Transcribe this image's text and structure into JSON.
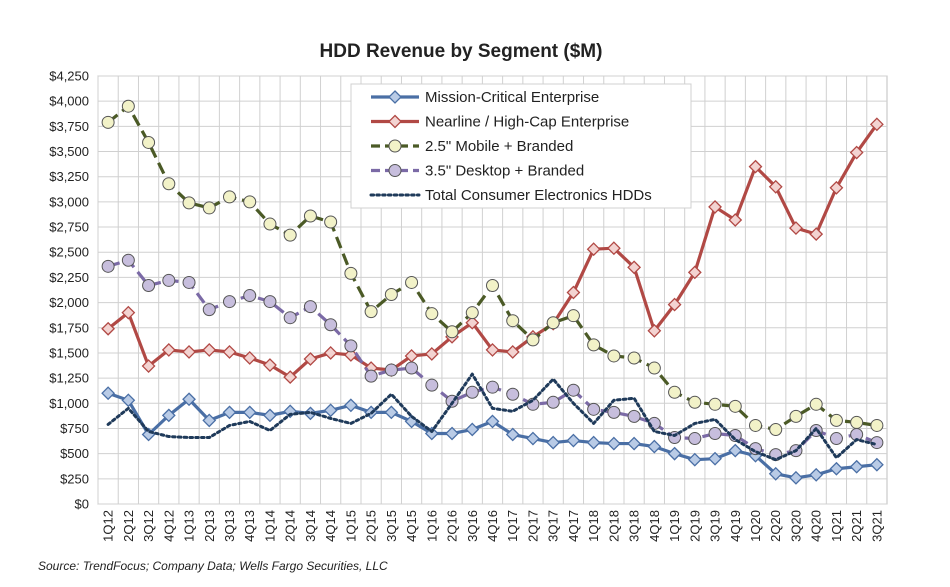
{
  "chart_data": {
    "type": "line",
    "title": "HDD Revenue by Segment ($M)",
    "source": "Source:  TrendFocus; Company Data; Wells Fargo Securities, LLC",
    "ylim": [
      0,
      4250
    ],
    "yticks": [
      "$0",
      "$250",
      "$500",
      "$750",
      "$1,000",
      "$1,250",
      "$1,500",
      "$1,750",
      "$2,000",
      "$2,250",
      "$2,500",
      "$2,750",
      "$3,000",
      "$3,250",
      "$3,500",
      "$3,750",
      "$4,000",
      "$4,250"
    ],
    "grid": true,
    "legend_position": "top-center",
    "categories": [
      "1Q12",
      "2Q12",
      "3Q12",
      "4Q12",
      "1Q13",
      "2Q13",
      "3Q13",
      "4Q13",
      "1Q14",
      "2Q14",
      "3Q14",
      "4Q14",
      "1Q15",
      "2Q15",
      "3Q15",
      "4Q15",
      "1Q16",
      "2Q16",
      "3Q16",
      "4Q16",
      "1Q17",
      "2Q17",
      "3Q17",
      "4Q17",
      "1Q18",
      "2Q18",
      "3Q18",
      "4Q18",
      "1Q19",
      "2Q19",
      "3Q19",
      "4Q19",
      "1Q20",
      "2Q20",
      "3Q20",
      "4Q20",
      "1Q21",
      "2Q21",
      "3Q21"
    ],
    "series": [
      {
        "name": "Mission-Critical Enterprise",
        "color": "#4a6fa5",
        "dash": "solid",
        "marker": "diamond",
        "values": [
          1100,
          1030,
          690,
          880,
          1040,
          830,
          910,
          910,
          880,
          920,
          900,
          930,
          980,
          910,
          910,
          820,
          700,
          700,
          740,
          820,
          690,
          650,
          610,
          630,
          610,
          600,
          600,
          570,
          500,
          440,
          450,
          530,
          480,
          300,
          260,
          290,
          350,
          370,
          390
        ]
      },
      {
        "name": "Nearline / High-Cap Enterprise",
        "color": "#b14945",
        "dash": "solid",
        "marker": "diamond",
        "values": [
          1740,
          1900,
          1370,
          1530,
          1510,
          1530,
          1510,
          1450,
          1380,
          1260,
          1440,
          1500,
          1480,
          1350,
          1330,
          1470,
          1490,
          1660,
          1800,
          1530,
          1510,
          1660,
          1790,
          2100,
          2530,
          2540,
          2350,
          1720,
          1980,
          2300,
          2950,
          2820,
          3350,
          3150,
          2740,
          2680,
          3140,
          3490,
          3770
        ]
      },
      {
        "name": "2.5\" Mobile + Branded",
        "color": "#4b5a26",
        "dash": "dashed",
        "marker": "circle",
        "fill": "#f2f2c8",
        "values": [
          3790,
          3950,
          3590,
          3180,
          2990,
          2940,
          3050,
          3000,
          2780,
          2670,
          2860,
          2800,
          2290,
          1910,
          2080,
          2200,
          1890,
          1710,
          1900,
          2170,
          1820,
          1630,
          1800,
          1870,
          1580,
          1470,
          1450,
          1350,
          1110,
          1010,
          990,
          970,
          780,
          740,
          870,
          990,
          830,
          810,
          780
        ]
      },
      {
        "name": "3.5\" Desktop + Branded",
        "color": "#7b6aa6",
        "dash": "dashed",
        "marker": "circle",
        "fill": "#c7bedd",
        "values": [
          2360,
          2420,
          2170,
          2220,
          2200,
          1930,
          2010,
          2070,
          2010,
          1850,
          1960,
          1780,
          1570,
          1270,
          1330,
          1350,
          1180,
          1020,
          1110,
          1160,
          1090,
          990,
          1010,
          1130,
          940,
          910,
          870,
          800,
          660,
          650,
          700,
          680,
          550,
          490,
          530,
          730,
          650,
          690,
          610
        ]
      },
      {
        "name": "Total Consumer Electronics HDDs",
        "color": "#1f3a5a",
        "dash": "dotted",
        "marker": "none",
        "values": [
          790,
          950,
          720,
          670,
          660,
          660,
          780,
          820,
          730,
          890,
          910,
          850,
          800,
          900,
          1090,
          870,
          720,
          1000,
          1290,
          950,
          920,
          1030,
          1240,
          1000,
          800,
          1030,
          1050,
          720,
          680,
          800,
          840,
          640,
          520,
          440,
          530,
          750,
          460,
          640,
          590
        ]
      }
    ]
  }
}
